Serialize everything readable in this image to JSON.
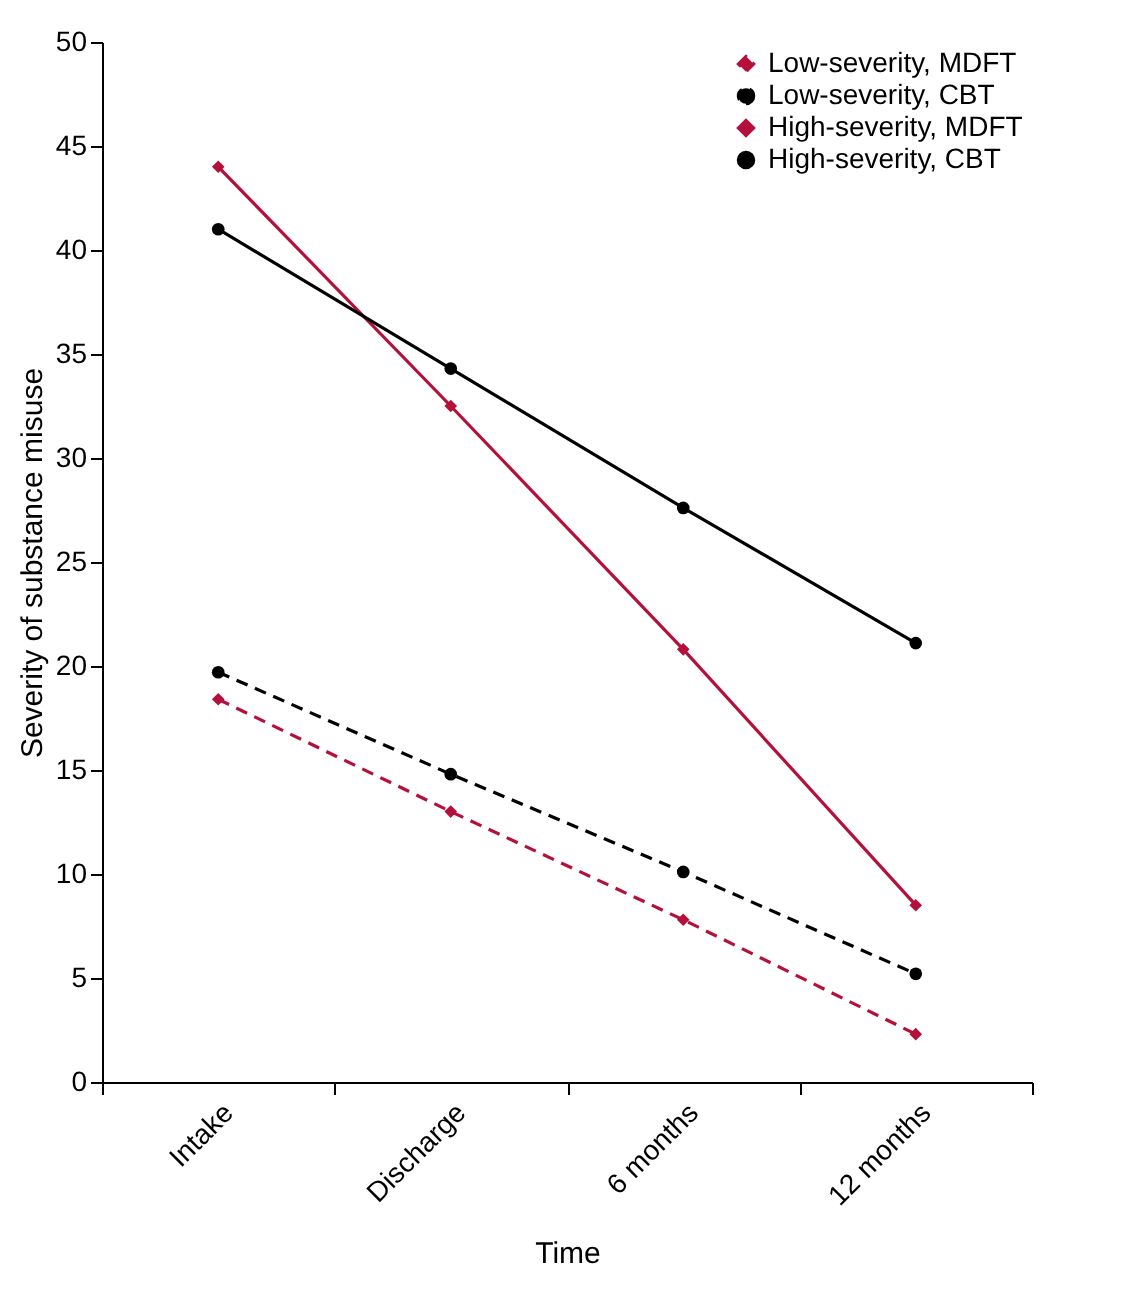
{
  "chart_data": {
    "type": "line",
    "xlabel": "Time",
    "ylabel": "Severity of substance misuse",
    "categories": [
      "Intake",
      "Discharge",
      "6 months",
      "12 months"
    ],
    "ylim": [
      0,
      50
    ],
    "yticks": [
      0,
      5,
      10,
      15,
      20,
      25,
      30,
      35,
      40,
      45,
      50
    ],
    "legend": "top right",
    "grid": false,
    "series": [
      {
        "name": "Low-severity, MDFT",
        "color": "#b5103c",
        "marker": "diamond",
        "line_style": "dashed",
        "values": [
          18.4,
          13.0,
          7.8,
          2.3
        ]
      },
      {
        "name": "Low-severity, CBT",
        "color": "#000000",
        "marker": "circle",
        "line_style": "dashed",
        "values": [
          19.7,
          14.8,
          10.1,
          5.2
        ]
      },
      {
        "name": "High-severity, MDFT",
        "color": "#b5103c",
        "marker": "diamond",
        "line_style": "solid",
        "values": [
          44.0,
          32.5,
          20.8,
          8.5
        ]
      },
      {
        "name": "High-severity, CBT",
        "color": "#000000",
        "marker": "circle",
        "line_style": "solid",
        "values": [
          41.0,
          34.3,
          27.6,
          21.1
        ]
      }
    ]
  }
}
